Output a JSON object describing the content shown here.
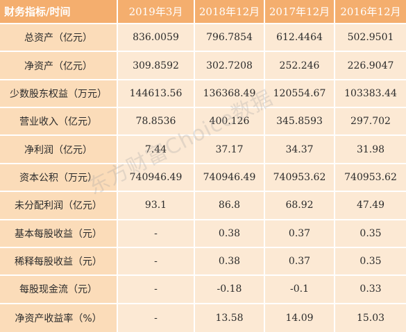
{
  "table": {
    "headers": [
      "财务指标/时间",
      "2019年3月",
      "2018年12月",
      "2017年12月",
      "2016年12月"
    ],
    "rows": [
      {
        "label": "总资产（亿元）",
        "values": [
          "836.0059",
          "796.7854",
          "612.4464",
          "502.9501"
        ]
      },
      {
        "label": "净资产（亿元）",
        "values": [
          "309.8592",
          "302.7208",
          "252.246",
          "226.9047"
        ]
      },
      {
        "label": "少数股东权益（万元）",
        "values": [
          "144613.56",
          "136368.49",
          "120554.67",
          "103383.44"
        ]
      },
      {
        "label": "营业收入（亿元）",
        "values": [
          "78.8536",
          "400.126",
          "345.8593",
          "297.702"
        ]
      },
      {
        "label": "净利润（亿元）",
        "values": [
          "7.44",
          "37.17",
          "34.37",
          "31.98"
        ]
      },
      {
        "label": "资本公积（万元）",
        "values": [
          "740946.49",
          "740946.49",
          "740953.62",
          "740953.62"
        ]
      },
      {
        "label": "未分配利润（亿元）",
        "values": [
          "93.1",
          "86.8",
          "68.92",
          "47.49"
        ]
      },
      {
        "label": "基本每股收益（元）",
        "values": [
          "-",
          "0.38",
          "0.37",
          "0.35"
        ]
      },
      {
        "label": "稀释每股收益（元）",
        "values": [
          "-",
          "0.38",
          "0.37",
          "0.35"
        ]
      },
      {
        "label": "每股现金流（元）",
        "values": [
          "-",
          "-0.18",
          "-0.1",
          "0.33"
        ]
      },
      {
        "label": "净资产收益率（%）",
        "values": [
          "-",
          "13.58",
          "14.09",
          "15.03"
        ]
      }
    ]
  },
  "watermark": "东方财富Choice数据",
  "colors": {
    "header_bg": "#f4ae6e",
    "header_text": "#ffffff",
    "label_bg": "#fbdcb9",
    "cell_bg": "#fce9d4"
  }
}
